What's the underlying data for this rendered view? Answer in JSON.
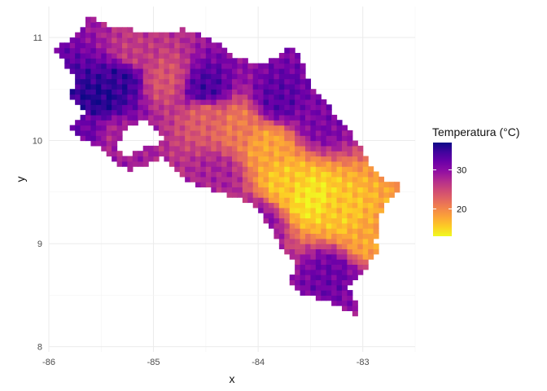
{
  "chart_data": {
    "type": "heatmap",
    "title": "",
    "xlabel": "x",
    "ylabel": "y",
    "xlim": [
      -86.0,
      -82.5
    ],
    "ylim": [
      7.95,
      11.3
    ],
    "x_ticks": [
      -86,
      -85,
      -84,
      -83
    ],
    "x_tick_labels": [
      "-86",
      "-85",
      "-84",
      "-83"
    ],
    "y_ticks": [
      8,
      9,
      10,
      11
    ],
    "y_tick_labels": [
      "8",
      "9",
      "10",
      "11"
    ],
    "grid": true,
    "legend": {
      "title": "Temperatura (°C)",
      "placement": "right",
      "range": [
        13,
        37
      ],
      "ticks": [
        20,
        30
      ],
      "tick_labels": [
        "20",
        "30"
      ],
      "palette": "plasma",
      "low_color": "#f0f921",
      "high_color": "#0d0887"
    },
    "raster": {
      "cell_degrees": 0.05,
      "region": "Costa Rica",
      "outline": [
        [
          -85.95,
          10.9
        ],
        [
          -85.85,
          10.95
        ],
        [
          -85.7,
          11.05
        ],
        [
          -85.65,
          11.2
        ],
        [
          -85.55,
          11.18
        ],
        [
          -85.4,
          11.1
        ],
        [
          -85.0,
          11.05
        ],
        [
          -84.7,
          11.08
        ],
        [
          -84.4,
          10.95
        ],
        [
          -84.2,
          10.8
        ],
        [
          -83.95,
          10.75
        ],
        [
          -83.7,
          10.9
        ],
        [
          -83.6,
          10.8
        ],
        [
          -83.5,
          10.55
        ],
        [
          -83.3,
          10.3
        ],
        [
          -83.1,
          10.05
        ],
        [
          -82.95,
          9.8
        ],
        [
          -82.85,
          9.65
        ],
        [
          -82.6,
          9.55
        ],
        [
          -82.75,
          9.45
        ],
        [
          -82.85,
          9.25
        ],
        [
          -82.88,
          9.0
        ],
        [
          -82.85,
          8.92
        ],
        [
          -82.95,
          8.8
        ],
        [
          -83.15,
          8.6
        ],
        [
          -83.05,
          8.4
        ],
        [
          -83.05,
          8.25
        ],
        [
          -83.15,
          8.35
        ],
        [
          -83.35,
          8.45
        ],
        [
          -83.55,
          8.5
        ],
        [
          -83.7,
          8.6
        ],
        [
          -83.65,
          8.8
        ],
        [
          -83.8,
          9.0
        ],
        [
          -84.0,
          9.35
        ],
        [
          -84.35,
          9.5
        ],
        [
          -84.7,
          9.6
        ],
        [
          -84.85,
          9.8
        ],
        [
          -85.05,
          9.95
        ],
        [
          -85.25,
          9.85
        ],
        [
          -85.35,
          9.9
        ],
        [
          -85.3,
          10.1
        ],
        [
          -85.1,
          10.2
        ],
        [
          -84.9,
          10.05
        ],
        [
          -85.0,
          9.95
        ],
        [
          -84.95,
          9.82
        ],
        [
          -85.25,
          9.7
        ],
        [
          -85.4,
          9.85
        ],
        [
          -85.55,
          9.95
        ],
        [
          -85.8,
          10.1
        ],
        [
          -85.65,
          10.3
        ],
        [
          -85.8,
          10.45
        ],
        [
          -85.75,
          10.6
        ],
        [
          -85.85,
          10.75
        ]
      ],
      "temperature_samples": [
        {
          "lon": -85.5,
          "lat": 10.4,
          "temp": 36
        },
        {
          "lon": -85.3,
          "lat": 10.6,
          "temp": 35
        },
        {
          "lon": -84.5,
          "lat": 10.5,
          "temp": 34
        },
        {
          "lon": -83.8,
          "lat": 10.4,
          "temp": 33
        },
        {
          "lon": -83.4,
          "lat": 10.2,
          "temp": 31
        },
        {
          "lon": -85.2,
          "lat": 10.85,
          "temp": 26
        },
        {
          "lon": -84.9,
          "lat": 10.6,
          "temp": 24
        },
        {
          "lon": -84.5,
          "lat": 10.25,
          "temp": 23
        },
        {
          "lon": -84.2,
          "lat": 10.15,
          "temp": 21
        },
        {
          "lon": -83.9,
          "lat": 9.95,
          "temp": 18
        },
        {
          "lon": -83.75,
          "lat": 9.6,
          "temp": 16
        },
        {
          "lon": -83.5,
          "lat": 9.45,
          "temp": 14
        },
        {
          "lon": -83.2,
          "lat": 9.3,
          "temp": 16
        },
        {
          "lon": -82.95,
          "lat": 9.05,
          "temp": 18
        },
        {
          "lon": -84.4,
          "lat": 9.65,
          "temp": 28
        },
        {
          "lon": -84.0,
          "lat": 9.2,
          "temp": 30
        },
        {
          "lon": -83.3,
          "lat": 8.7,
          "temp": 32
        },
        {
          "lon": -82.9,
          "lat": 8.55,
          "temp": 30
        },
        {
          "lon": -85.4,
          "lat": 10.05,
          "temp": 28
        },
        {
          "lon": -85.6,
          "lat": 10.1,
          "temp": 32
        }
      ]
    }
  }
}
